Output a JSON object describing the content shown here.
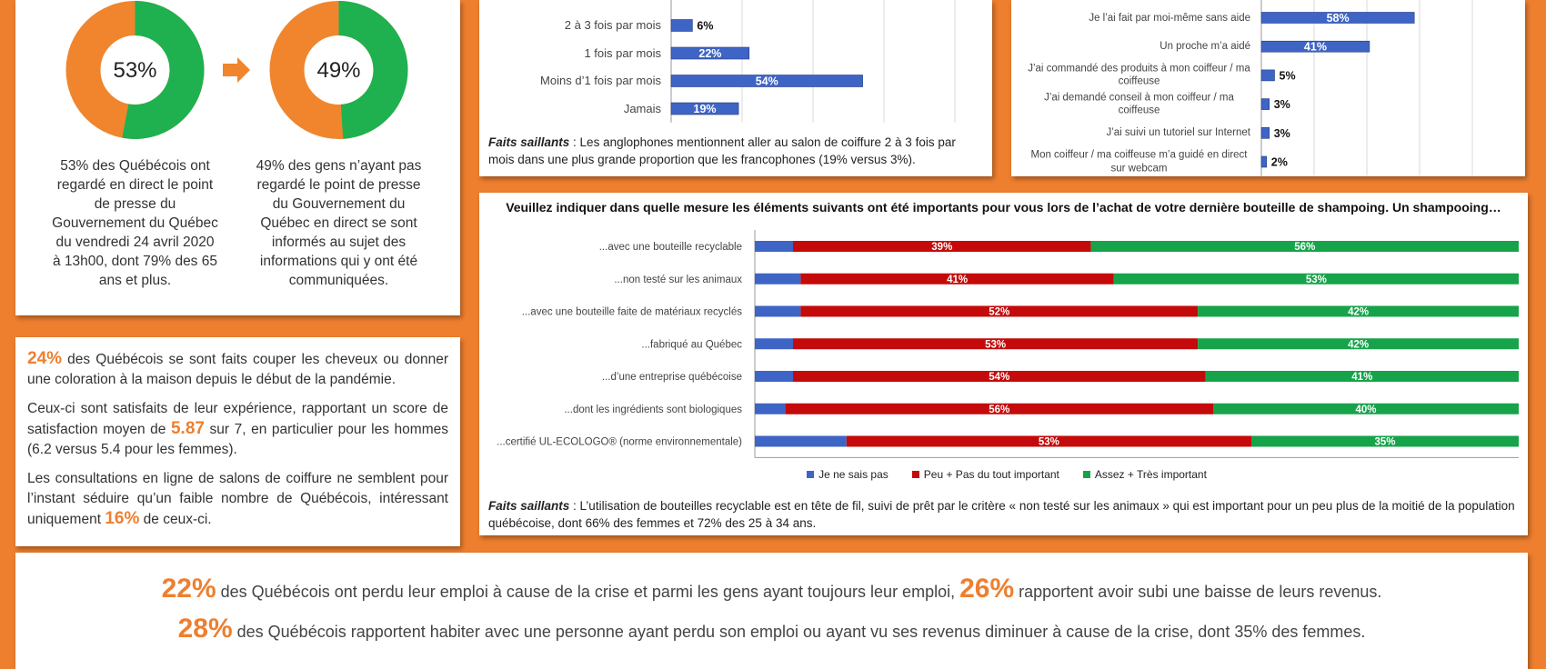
{
  "chart_data": [
    {
      "type": "donut",
      "values": [
        53
      ],
      "value_labels": [
        "53%"
      ],
      "color": "#1fb14f",
      "base_color": "#f0852d",
      "caption": "53% des Québécois ont regardé en direct le point de presse du Gouvernement du Québec du vendredi 24 avril 2020 à 13h00, dont 79% des 65 ans et plus."
    },
    {
      "type": "donut",
      "values": [
        49
      ],
      "value_labels": [
        "49%"
      ],
      "color": "#1fb14f",
      "base_color": "#f0852d",
      "caption": "49% des gens n’ayant pas regardé le point de presse du Gouvernement du Québec en direct se sont informés au sujet des informations qui y ont été communiquées."
    },
    {
      "type": "bar",
      "categories": [
        "2 à 3 fois par mois",
        "1 fois par mois",
        "Moins d’1 fois par mois",
        "Jamais"
      ],
      "values": [
        6,
        22,
        54,
        19
      ],
      "value_labels": [
        "6%",
        "22%",
        "54%",
        "19%"
      ],
      "color": "#3e65c5",
      "xlim": [
        0,
        90
      ],
      "xticks": [
        20,
        40,
        60,
        80
      ],
      "grid": true,
      "note_label": "Faits saillants",
      "note": " : Les anglophones mentionnent aller au salon de coiffure 2 à 3 fois par mois dans une plus grande proportion que les francophones (19% versus 3%)."
    },
    {
      "type": "bar",
      "categories": [
        "Je l’ai fait par moi-même sans aide",
        "Un proche m’a aidé",
        "J’ai commandé des produits à mon coiffeur / ma coiffeuse",
        "J’ai demandé conseil à mon coiffeur / ma coiffeuse",
        "J’ai suivi un tutoriel sur Internet",
        "Mon coiffeur / ma coiffeuse m’a guidé en direct sur webcam"
      ],
      "values": [
        58,
        41,
        5,
        3,
        3,
        2
      ],
      "value_labels": [
        "58%",
        "41%",
        "5%",
        "3%",
        "3%",
        "2%"
      ],
      "color": "#3e65c5",
      "xlim": [
        0,
        80
      ],
      "xticks": [
        20,
        40,
        60,
        80
      ],
      "grid": true
    },
    {
      "type": "stacked_bar",
      "title": "Veuillez indiquer dans quelle mesure les éléments suivants ont été importants pour vous lors de l’achat de votre dernière bouteille de shampoing. Un shampooing…",
      "categories": [
        "...avec une bouteille recyclable",
        "...non testé sur les animaux",
        "...avec une bouteille faite de matériaux recyclés",
        "...fabriqué au Québec",
        "...d’une entreprise québécoise",
        "...dont les ingrédients sont biologiques",
        "...certifié UL-ECOLOGO® (norme environnementale)"
      ],
      "series": [
        {
          "name": "Je ne sais pas",
          "color": "#3e65c5",
          "values": [
            5,
            6,
            6,
            5,
            5,
            4,
            12
          ]
        },
        {
          "name": "Peu + Pas du tout important",
          "color": "#c40a0a",
          "values": [
            39,
            41,
            52,
            53,
            54,
            56,
            53
          ],
          "value_labels": [
            "39%",
            "41%",
            "52%",
            "53%",
            "54%",
            "56%",
            "53%"
          ]
        },
        {
          "name": "Assez + Très important",
          "color": "#16a34a",
          "values": [
            56,
            53,
            42,
            42,
            41,
            40,
            35
          ],
          "value_labels": [
            "56%",
            "53%",
            "42%",
            "42%",
            "41%",
            "40%",
            "35%"
          ]
        }
      ],
      "xlim": [
        0,
        100
      ],
      "legend": "bottom",
      "note_label": "Faits saillants",
      "note": " : L’utilisation de bouteilles recyclable est en tête de fil, suivi de prêt par le critère « non testé sur les animaux » qui est important pour un peu plus de la moitié de la population québécoise, dont 66% des femmes et 72% des 25 à 34 ans."
    }
  ],
  "home_care_panel": {
    "paragraphs": [
      {
        "parts": [
          {
            "text": "24%",
            "highlight": true
          },
          {
            "text": " des Québécois se sont faits couper les cheveux ou donner une coloration à la maison depuis le début de la pandémie.",
            "highlight": false
          }
        ]
      },
      {
        "parts": [
          {
            "text": "Ceux-ci sont satisfaits de leur expérience, rapportant un score de satisfaction moyen de ",
            "highlight": false
          },
          {
            "text": "5.87",
            "highlight": true
          },
          {
            "text": " sur 7, en particulier pour les hommes (6.2 versus 5.4 pour les femmes).",
            "highlight": false
          }
        ]
      },
      {
        "parts": [
          {
            "text": "Les consultations en ligne de salons de coiffure ne semblent pour l’instant séduire qu’un faible nombre de Québécois, intéressant uniquement ",
            "highlight": false
          },
          {
            "text": "16%",
            "highlight": true
          },
          {
            "text": " de ceux-ci.",
            "highlight": false
          }
        ]
      }
    ]
  },
  "employment_panel": {
    "lines": [
      {
        "parts": [
          {
            "text": "22%",
            "highlight": true
          },
          {
            "text": " des Québécois ont perdu leur emploi à cause de la crise et parmi les gens ayant toujours leur emploi, ",
            "highlight": false
          },
          {
            "text": "26%",
            "highlight": true
          },
          {
            "text": " rapportent avoir subi une baisse de leurs revenus.",
            "highlight": false
          }
        ]
      },
      {
        "parts": [
          {
            "text": "28%",
            "highlight": true
          },
          {
            "text": " des Québécois rapportent habiter avec une personne ayant perdu son emploi ou ayant vu ses revenus diminuer à cause de la crise, dont 35% des femmes.",
            "highlight": false
          }
        ]
      }
    ]
  }
}
